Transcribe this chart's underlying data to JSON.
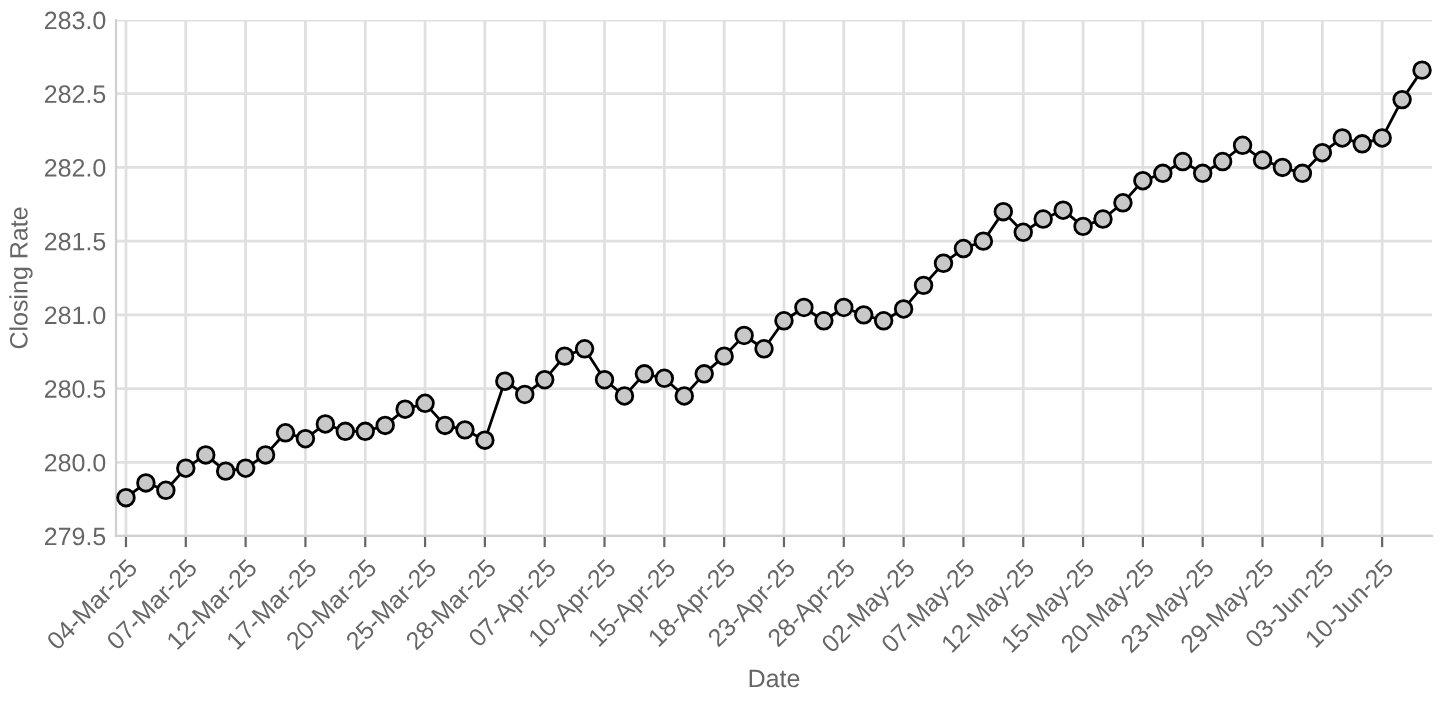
{
  "chart_data": {
    "type": "line",
    "xlabel": "Date",
    "ylabel": "Closing Rate",
    "categories": [
      "04-Mar-25",
      null,
      null,
      "07-Mar-25",
      null,
      null,
      "12-Mar-25",
      null,
      null,
      "17-Mar-25",
      null,
      null,
      "20-Mar-25",
      null,
      null,
      "25-Mar-25",
      null,
      null,
      "28-Mar-25",
      null,
      null,
      "07-Apr-25",
      null,
      null,
      "10-Apr-25",
      null,
      null,
      "15-Apr-25",
      null,
      null,
      "18-Apr-25",
      null,
      null,
      "23-Apr-25",
      null,
      null,
      "28-Apr-25",
      null,
      null,
      "02-May-25",
      null,
      null,
      "07-May-25",
      null,
      null,
      "12-May-25",
      null,
      null,
      "15-May-25",
      null,
      null,
      "20-May-25",
      null,
      null,
      "23-May-25",
      null,
      null,
      "29-May-25",
      null,
      null,
      "03-Jun-25",
      null,
      null,
      "10-Jun-25",
      null,
      null
    ],
    "series": [
      {
        "color": "#000000",
        "values": [
          279.76,
          279.86,
          279.81,
          279.96,
          280.05,
          279.94,
          279.96,
          280.05,
          280.2,
          280.16,
          280.26,
          280.21,
          280.21,
          280.25,
          280.36,
          280.4,
          280.25,
          280.22,
          280.15,
          280.55,
          280.46,
          280.56,
          280.72,
          280.77,
          280.56,
          280.45,
          280.6,
          280.57,
          280.45,
          280.6,
          280.72,
          280.86,
          280.77,
          280.96,
          281.05,
          280.96,
          281.05,
          281.0,
          280.96,
          281.04,
          281.2,
          281.35,
          281.45,
          281.5,
          281.7,
          281.56,
          281.65,
          281.71,
          281.6,
          281.65,
          281.76,
          281.91,
          281.96,
          282.04,
          281.96,
          282.04,
          282.15,
          282.05,
          282.0,
          281.96,
          282.1,
          282.2,
          282.16,
          282.2,
          282.46,
          282.66
        ]
      }
    ],
    "ylim": [
      279.5,
      283.0
    ],
    "yticks": [
      {
        "value": 279.5,
        "label": "279.5"
      },
      {
        "value": 280.0,
        "label": "280.0"
      },
      {
        "value": 280.5,
        "label": "280.5"
      },
      {
        "value": 281.0,
        "label": "281.0"
      },
      {
        "value": 281.5,
        "label": "281.5"
      },
      {
        "value": 282.0,
        "label": "282.0"
      },
      {
        "value": 282.5,
        "label": "282.5"
      },
      {
        "value": 283.0,
        "label": "283.0"
      }
    ],
    "grid": true,
    "marker": "circle",
    "line_style": "solid"
  }
}
